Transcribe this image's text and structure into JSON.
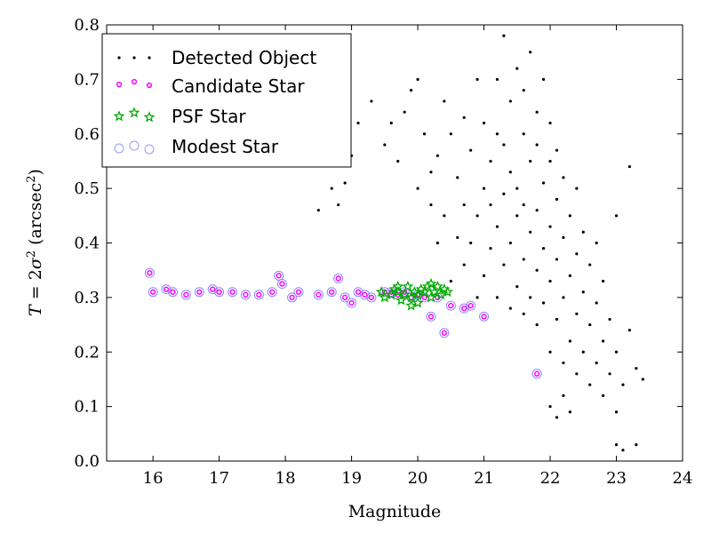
{
  "chart_data": {
    "type": "scatter",
    "title": "",
    "xlabel": "Magnitude",
    "ylabel": "T = 2σ² (arcsec²)",
    "ylabel_parts": {
      "T": "T",
      "eq": " = 2",
      "sigma": "σ",
      "sup": "2",
      "open": " (arcsec",
      "close": ")"
    },
    "xlim": [
      15.3,
      24
    ],
    "ylim": [
      0.0,
      0.8
    ],
    "xticks": [
      "16",
      "17",
      "18",
      "19",
      "20",
      "21",
      "22",
      "23",
      "24"
    ],
    "yticks": [
      "0.0",
      "0.1",
      "0.2",
      "0.3",
      "0.4",
      "0.5",
      "0.6",
      "0.7",
      "0.8"
    ],
    "legend_position": "top-left",
    "grid": false,
    "colors": {
      "detected": "#000000",
      "candidate": "#ff00ff",
      "psf": "#00aa00",
      "modest": "#8888ff"
    },
    "series": [
      {
        "name": "Detected Object",
        "marker": "dot",
        "color": "#000000",
        "points": [
          [
            18.5,
            0.46
          ],
          [
            18.6,
            0.55
          ],
          [
            18.7,
            0.5
          ],
          [
            18.8,
            0.47
          ],
          [
            18.9,
            0.51
          ],
          [
            19.0,
            0.56
          ],
          [
            19.1,
            0.62
          ],
          [
            19.3,
            0.66
          ],
          [
            19.5,
            0.58
          ],
          [
            19.6,
            0.62
          ],
          [
            19.7,
            0.55
          ],
          [
            19.8,
            0.64
          ],
          [
            19.9,
            0.68
          ],
          [
            20.0,
            0.5
          ],
          [
            20.0,
            0.7
          ],
          [
            20.1,
            0.6
          ],
          [
            20.2,
            0.47
          ],
          [
            20.2,
            0.53
          ],
          [
            20.3,
            0.4
          ],
          [
            20.3,
            0.56
          ],
          [
            20.4,
            0.45
          ],
          [
            20.4,
            0.66
          ],
          [
            20.5,
            0.33
          ],
          [
            20.5,
            0.6
          ],
          [
            20.6,
            0.41
          ],
          [
            20.6,
            0.52
          ],
          [
            20.7,
            0.36
          ],
          [
            20.7,
            0.47
          ],
          [
            20.7,
            0.63
          ],
          [
            20.8,
            0.4
          ],
          [
            20.8,
            0.57
          ],
          [
            20.9,
            0.3
          ],
          [
            20.9,
            0.45
          ],
          [
            20.9,
            0.7
          ],
          [
            21.0,
            0.34
          ],
          [
            21.0,
            0.5
          ],
          [
            21.0,
            0.62
          ],
          [
            21.1,
            0.39
          ],
          [
            21.1,
            0.47
          ],
          [
            21.1,
            0.55
          ],
          [
            21.2,
            0.3
          ],
          [
            21.2,
            0.43
          ],
          [
            21.2,
            0.6
          ],
          [
            21.2,
            0.7
          ],
          [
            21.3,
            0.36
          ],
          [
            21.3,
            0.49
          ],
          [
            21.3,
            0.58
          ],
          [
            21.3,
            0.78
          ],
          [
            21.4,
            0.28
          ],
          [
            21.4,
            0.4
          ],
          [
            21.4,
            0.53
          ],
          [
            21.4,
            0.66
          ],
          [
            21.5,
            0.32
          ],
          [
            21.5,
            0.45
          ],
          [
            21.5,
            0.5
          ],
          [
            21.5,
            0.72
          ],
          [
            21.6,
            0.27
          ],
          [
            21.6,
            0.37
          ],
          [
            21.6,
            0.47
          ],
          [
            21.6,
            0.6
          ],
          [
            21.6,
            0.68
          ],
          [
            21.7,
            0.3
          ],
          [
            21.7,
            0.42
          ],
          [
            21.7,
            0.55
          ],
          [
            21.7,
            0.75
          ],
          [
            21.8,
            0.25
          ],
          [
            21.8,
            0.35
          ],
          [
            21.8,
            0.46
          ],
          [
            21.8,
            0.58
          ],
          [
            21.8,
            0.64
          ],
          [
            21.9,
            0.29
          ],
          [
            21.9,
            0.39
          ],
          [
            21.9,
            0.51
          ],
          [
            21.9,
            0.7
          ],
          [
            22.0,
            0.2
          ],
          [
            22.0,
            0.33
          ],
          [
            22.0,
            0.43
          ],
          [
            22.0,
            0.55
          ],
          [
            22.0,
            0.62
          ],
          [
            22.0,
            0.1
          ],
          [
            22.1,
            0.26
          ],
          [
            22.1,
            0.37
          ],
          [
            22.1,
            0.48
          ],
          [
            22.1,
            0.57
          ],
          [
            22.1,
            0.08
          ],
          [
            22.2,
            0.18
          ],
          [
            22.2,
            0.3
          ],
          [
            22.2,
            0.41
          ],
          [
            22.2,
            0.52
          ],
          [
            22.2,
            0.12
          ],
          [
            22.3,
            0.22
          ],
          [
            22.3,
            0.34
          ],
          [
            22.3,
            0.45
          ],
          [
            22.3,
            0.09
          ],
          [
            22.4,
            0.16
          ],
          [
            22.4,
            0.27
          ],
          [
            22.4,
            0.38
          ],
          [
            22.4,
            0.5
          ],
          [
            22.5,
            0.2
          ],
          [
            22.5,
            0.31
          ],
          [
            22.5,
            0.42
          ],
          [
            22.6,
            0.14
          ],
          [
            22.6,
            0.25
          ],
          [
            22.6,
            0.36
          ],
          [
            22.7,
            0.18
          ],
          [
            22.7,
            0.29
          ],
          [
            22.7,
            0.4
          ],
          [
            22.8,
            0.12
          ],
          [
            22.8,
            0.22
          ],
          [
            22.8,
            0.33
          ],
          [
            22.9,
            0.16
          ],
          [
            22.9,
            0.26
          ],
          [
            23.0,
            0.09
          ],
          [
            23.0,
            0.2
          ],
          [
            23.0,
            0.03
          ],
          [
            23.1,
            0.14
          ],
          [
            23.1,
            0.02
          ],
          [
            23.2,
            0.24
          ],
          [
            23.3,
            0.17
          ],
          [
            23.4,
            0.15
          ],
          [
            23.3,
            0.03
          ],
          [
            23.2,
            0.54
          ],
          [
            23.0,
            0.45
          ]
        ]
      },
      {
        "name": "Candidate Star",
        "marker": "circle-small",
        "color": "#ff00ff",
        "points": [
          [
            15.95,
            0.345
          ],
          [
            16.0,
            0.31
          ],
          [
            16.2,
            0.315
          ],
          [
            16.3,
            0.31
          ],
          [
            16.5,
            0.305
          ],
          [
            16.7,
            0.31
          ],
          [
            16.9,
            0.315
          ],
          [
            17.0,
            0.31
          ],
          [
            17.2,
            0.31
          ],
          [
            17.4,
            0.305
          ],
          [
            17.6,
            0.305
          ],
          [
            17.8,
            0.31
          ],
          [
            17.9,
            0.34
          ],
          [
            17.95,
            0.325
          ],
          [
            18.1,
            0.3
          ],
          [
            18.2,
            0.31
          ],
          [
            18.5,
            0.305
          ],
          [
            18.7,
            0.31
          ],
          [
            18.8,
            0.335
          ],
          [
            18.9,
            0.3
          ],
          [
            19.0,
            0.29
          ],
          [
            19.1,
            0.31
          ],
          [
            19.2,
            0.305
          ],
          [
            19.3,
            0.3
          ],
          [
            19.5,
            0.31
          ],
          [
            19.6,
            0.31
          ],
          [
            19.7,
            0.305
          ],
          [
            19.8,
            0.31
          ],
          [
            19.9,
            0.3
          ],
          [
            20.0,
            0.305
          ],
          [
            20.1,
            0.3
          ],
          [
            20.2,
            0.265
          ],
          [
            20.3,
            0.3
          ],
          [
            20.4,
            0.235
          ],
          [
            20.5,
            0.285
          ],
          [
            20.7,
            0.28
          ],
          [
            20.8,
            0.285
          ],
          [
            21.0,
            0.265
          ],
          [
            21.8,
            0.16
          ]
        ]
      },
      {
        "name": "PSF Star",
        "marker": "star",
        "color": "#00aa00",
        "points": [
          [
            19.45,
            0.31
          ],
          [
            19.5,
            0.3
          ],
          [
            19.6,
            0.305
          ],
          [
            19.65,
            0.315
          ],
          [
            19.7,
            0.31
          ],
          [
            19.75,
            0.295
          ],
          [
            19.8,
            0.305
          ],
          [
            19.85,
            0.32
          ],
          [
            19.9,
            0.3
          ],
          [
            19.95,
            0.31
          ],
          [
            20.0,
            0.305
          ],
          [
            20.05,
            0.315
          ],
          [
            20.1,
            0.31
          ],
          [
            20.15,
            0.32
          ],
          [
            20.2,
            0.3
          ],
          [
            20.25,
            0.31
          ],
          [
            20.3,
            0.32
          ],
          [
            20.35,
            0.305
          ],
          [
            20.4,
            0.315
          ],
          [
            20.45,
            0.31
          ],
          [
            20.0,
            0.29
          ],
          [
            19.9,
            0.285
          ],
          [
            20.2,
            0.325
          ],
          [
            19.7,
            0.32
          ]
        ]
      },
      {
        "name": "Modest Star",
        "marker": "circle-large",
        "color": "#8888ff",
        "points": [
          [
            15.95,
            0.345
          ],
          [
            16.0,
            0.31
          ],
          [
            16.2,
            0.315
          ],
          [
            16.3,
            0.31
          ],
          [
            16.5,
            0.305
          ],
          [
            16.7,
            0.31
          ],
          [
            16.9,
            0.315
          ],
          [
            17.0,
            0.31
          ],
          [
            17.2,
            0.31
          ],
          [
            17.4,
            0.305
          ],
          [
            17.6,
            0.305
          ],
          [
            17.8,
            0.31
          ],
          [
            17.9,
            0.34
          ],
          [
            17.95,
            0.325
          ],
          [
            18.1,
            0.3
          ],
          [
            18.2,
            0.31
          ],
          [
            18.5,
            0.305
          ],
          [
            18.7,
            0.31
          ],
          [
            18.8,
            0.335
          ],
          [
            18.9,
            0.3
          ],
          [
            19.0,
            0.29
          ],
          [
            19.1,
            0.31
          ],
          [
            19.2,
            0.305
          ],
          [
            19.3,
            0.3
          ],
          [
            19.5,
            0.31
          ],
          [
            19.6,
            0.31
          ],
          [
            19.7,
            0.305
          ],
          [
            19.8,
            0.31
          ],
          [
            19.9,
            0.3
          ],
          [
            20.0,
            0.305
          ],
          [
            20.1,
            0.3
          ],
          [
            20.2,
            0.265
          ],
          [
            20.3,
            0.3
          ],
          [
            20.4,
            0.235
          ],
          [
            20.5,
            0.285
          ],
          [
            20.7,
            0.28
          ],
          [
            20.8,
            0.285
          ],
          [
            21.0,
            0.265
          ],
          [
            21.8,
            0.16
          ]
        ]
      }
    ]
  }
}
